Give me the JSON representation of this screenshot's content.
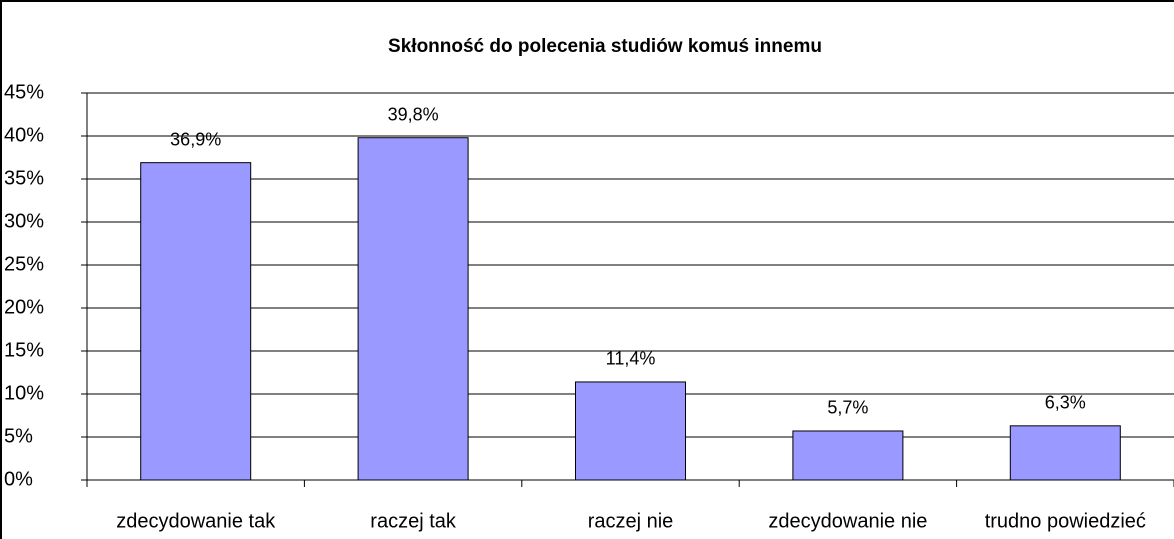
{
  "chart_data": {
    "type": "bar",
    "title": "Skłonność do polecenia studiów komuś innemu",
    "categories": [
      "zdecydowanie tak",
      "raczej tak",
      "raczej nie",
      "zdecydowanie nie",
      "trudno powiedzieć"
    ],
    "values": [
      36.9,
      39.8,
      11.4,
      5.7,
      6.3
    ],
    "value_labels": [
      "36,9%",
      "39,8%",
      "11,4%",
      "5,7%",
      "6,3%"
    ],
    "color": "#9999ff",
    "ylim": [
      0,
      45
    ],
    "yticks": [
      {
        "value": 0,
        "label": "0%"
      },
      {
        "value": 5,
        "label": "5%"
      },
      {
        "value": 10,
        "label": "10%"
      },
      {
        "value": 15,
        "label": "15%"
      },
      {
        "value": 20,
        "label": "20%"
      },
      {
        "value": 25,
        "label": "25%"
      },
      {
        "value": 30,
        "label": "30%"
      },
      {
        "value": 35,
        "label": "35%"
      },
      {
        "value": 40,
        "label": "40%"
      },
      {
        "value": 45,
        "label": "45%"
      }
    ],
    "grid": true
  }
}
